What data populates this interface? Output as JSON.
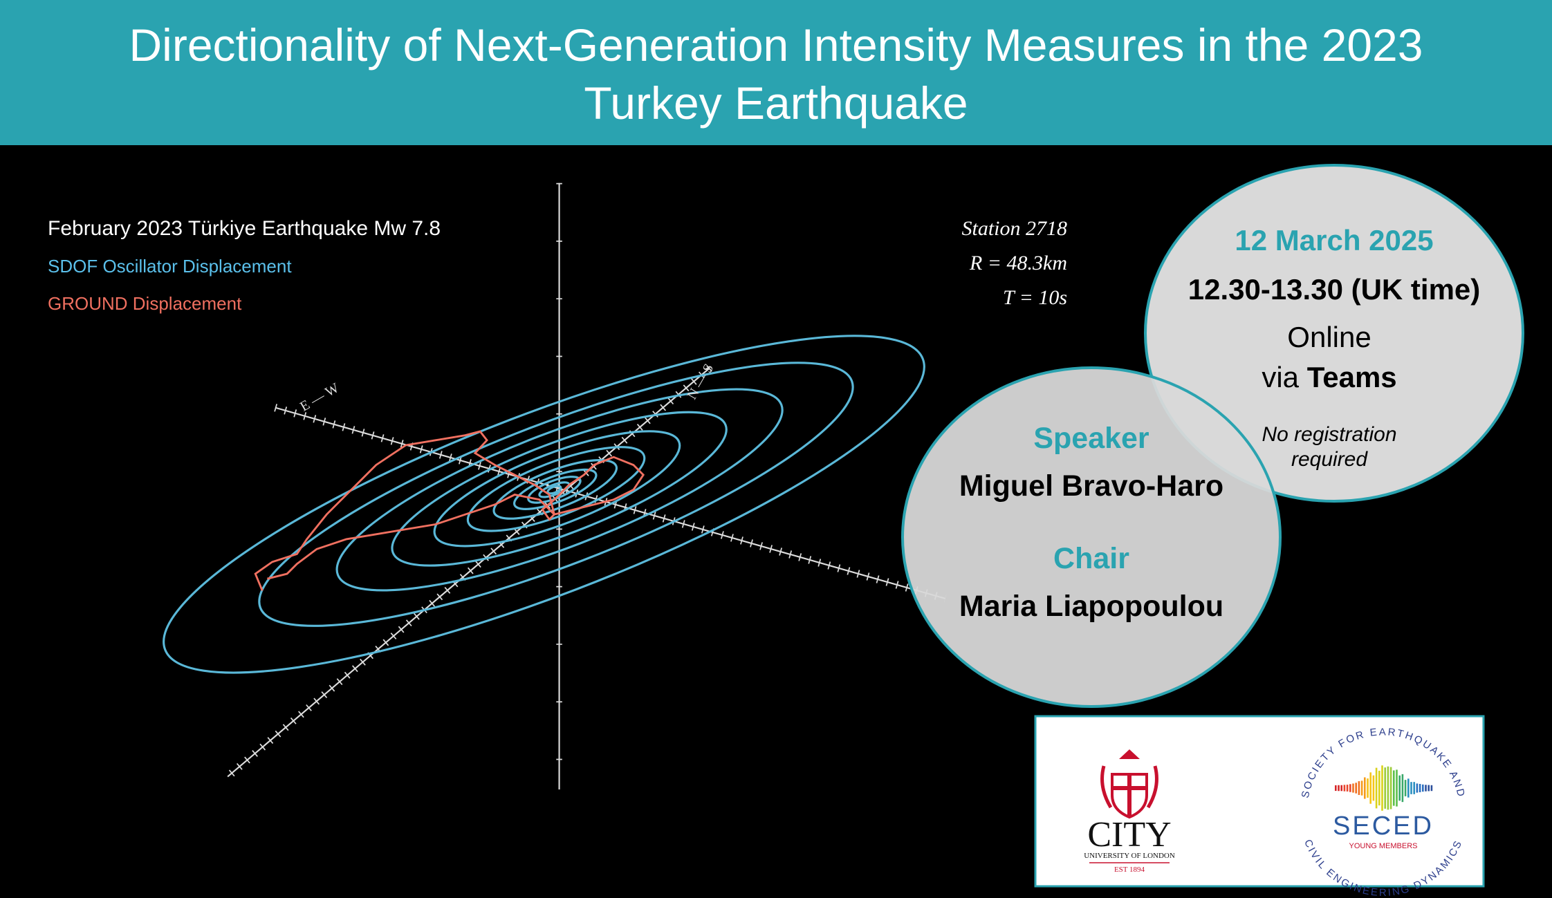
{
  "header": {
    "title_lines": [
      "Directionality of Next-Generation Intensity Measures in the 2023",
      "Turkey Earthquake"
    ]
  },
  "figure": {
    "title": "February 2023 Türkiye Earthquake Mw 7.8",
    "legend": [
      "SDOF Oscillator Displacement",
      "GROUND Displacement"
    ],
    "station_lines": [
      "Station 2718",
      "R = 48.3km",
      "T = 10s"
    ],
    "axis_labels": [
      "E — W",
      "N — S"
    ]
  },
  "event": {
    "date": "12 March 2025",
    "time": "12.30-13.30 (UK time)",
    "mode": "Online",
    "via": "via",
    "platform": "Teams",
    "registration_lines": [
      "No registration",
      "required"
    ]
  },
  "people": {
    "speaker_label": "Speaker",
    "speaker": "Miguel Bravo-Haro",
    "chair_label": "Chair",
    "chair": "Maria Liapopoulou"
  },
  "logos": {
    "city": {
      "name": "CITY",
      "subtitle": "UNIVERSITY OF LONDON",
      "established": "EST 1894"
    },
    "seced": {
      "name": "SECED",
      "subtitle": "YOUNG MEMBERS",
      "ring_lines": [
        "SOCIETY FOR EARTHQUAKE AND",
        "CIVIL ENGINEERING DYNAMICS"
      ]
    }
  }
}
